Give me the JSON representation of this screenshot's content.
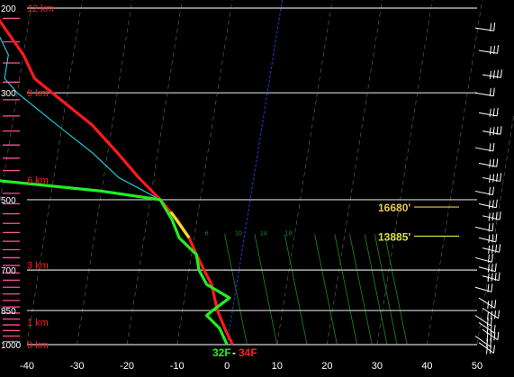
{
  "chart_data": {
    "type": "skew-t",
    "x_axis": {
      "label": "",
      "ticks": [
        -40,
        -30,
        -20,
        -10,
        0,
        10,
        20,
        30,
        40,
        50
      ]
    },
    "y_axis": {
      "label": "",
      "ticks": [
        200,
        300,
        500,
        700,
        850,
        1000
      ]
    },
    "height_labels": [
      {
        "text": "12 km",
        "p": 200
      },
      {
        "text": "9 km",
        "p": 300
      },
      {
        "text": "6 km",
        "p": 455
      },
      {
        "text": "3 km",
        "p": 683
      },
      {
        "text": "1 km",
        "p": 898
      },
      {
        "text": "0 km",
        "p": 1000
      }
    ],
    "freezing_annotations": [
      {
        "text": "16680'",
        "p": 520,
        "color": "#e8c84a"
      },
      {
        "text": "13885'",
        "p": 598,
        "color": "#d8e040"
      }
    ],
    "surface_labels": {
      "dewpoint": "32F",
      "temperature": "34F"
    },
    "mixing_ratio_labels": [
      "6",
      "10",
      "14",
      "18"
    ],
    "temperature_profile": [
      {
        "p": 1000,
        "t": 1.1
      },
      {
        "p": 925,
        "t": -1
      },
      {
        "p": 850,
        "t": -3
      },
      {
        "p": 800,
        "t": -4
      },
      {
        "p": 750,
        "t": -5
      },
      {
        "p": 700,
        "t": -7
      },
      {
        "p": 650,
        "t": -9
      },
      {
        "p": 600,
        "t": -11
      },
      {
        "p": 550,
        "t": -14
      },
      {
        "p": 500,
        "t": -18
      },
      {
        "p": 450,
        "t": -23
      },
      {
        "p": 400,
        "t": -28
      },
      {
        "p": 350,
        "t": -34
      },
      {
        "p": 300,
        "t": -43
      },
      {
        "p": 280,
        "t": -47
      },
      {
        "p": 250,
        "t": -50
      },
      {
        "p": 200,
        "t": -58
      }
    ],
    "dewpoint_profile": [
      {
        "p": 1000,
        "t": 0
      },
      {
        "p": 925,
        "t": -2
      },
      {
        "p": 870,
        "t": -5
      },
      {
        "p": 850,
        "t": -4
      },
      {
        "p": 800,
        "t": -1
      },
      {
        "p": 750,
        "t": -6
      },
      {
        "p": 700,
        "t": -8
      },
      {
        "p": 650,
        "t": -9
      },
      {
        "p": 600,
        "t": -13
      },
      {
        "p": 550,
        "t": -15
      },
      {
        "p": 500,
        "t": -18
      },
      {
        "p": 480,
        "t": -30
      },
      {
        "p": 450,
        "t": -57
      },
      {
        "p": 400,
        "t": -77
      },
      {
        "p": 350,
        "t": -84
      },
      {
        "p": 310,
        "t": -78
      },
      {
        "p": 300,
        "t": -79
      },
      {
        "p": 270,
        "t": -92
      },
      {
        "p": 250,
        "t": -105
      },
      {
        "p": 220,
        "t": -109
      },
      {
        "p": 200,
        "t": -104
      }
    ],
    "wetbulb_profile": [
      {
        "p": 500,
        "t": -18
      },
      {
        "p": 450,
        "t": -27
      },
      {
        "p": 400,
        "t": -33
      },
      {
        "p": 350,
        "t": -41
      },
      {
        "p": 300,
        "t": -50
      },
      {
        "p": 280,
        "t": -53
      },
      {
        "p": 250,
        "t": -53
      },
      {
        "p": 200,
        "t": -59
      }
    ],
    "freezing_segment": [
      {
        "p": 530,
        "t": -15.5
      },
      {
        "p": 600,
        "t": -11
      }
    ],
    "colors": {
      "temperature": "#ff1a1a",
      "dewpoint": "#22ee22",
      "wetbulb": "#22d8e8",
      "freezing_segment": "#e8e030",
      "isobar": "#b0b0b0",
      "isotherm": "#5a5a5a",
      "zero_isotherm": "#2233cc",
      "mixing_ratio": "#1e8a1e",
      "height_label": "#ff2020",
      "axis_label": "#ffffff",
      "wind_barb": "#ffffff"
    },
    "grid": true
  }
}
